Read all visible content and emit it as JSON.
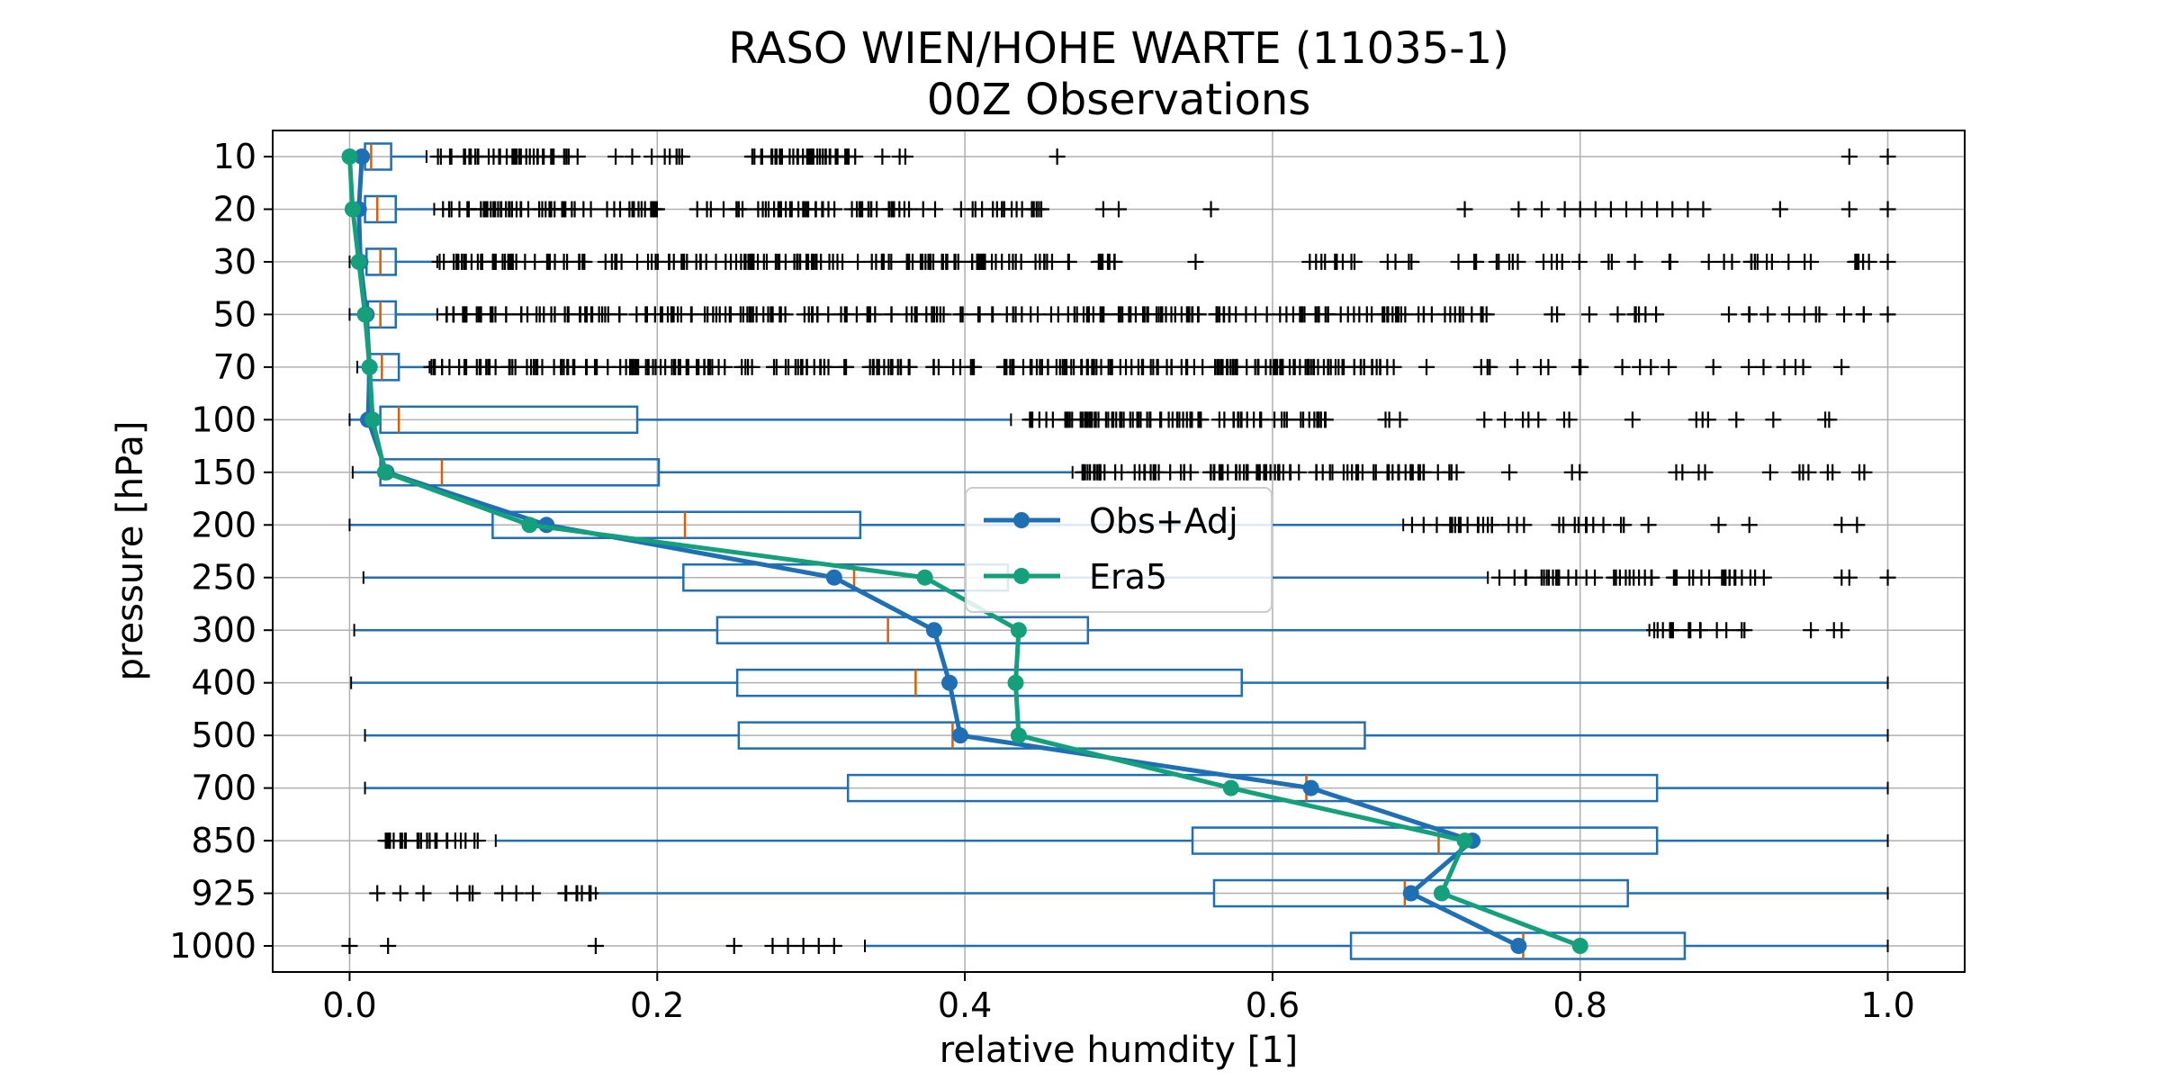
{
  "chart_data": {
    "type": "box",
    "title": "RASO WIEN/HOHE WARTE (11035-1)",
    "subtitle": "00Z Observations",
    "xlabel": "relative humdity [1]",
    "ylabel": "pressure [hPa]",
    "xlim": [
      -0.05,
      1.05
    ],
    "xticks": [
      0.0,
      0.2,
      0.4,
      0.6,
      0.8,
      1.0
    ],
    "xtick_labels": [
      "0.0",
      "0.2",
      "0.4",
      "0.6",
      "0.8",
      "1.0"
    ],
    "grid": true,
    "legend_position": "center",
    "levels": [
      "10",
      "20",
      "30",
      "50",
      "70",
      "100",
      "150",
      "200",
      "250",
      "300",
      "400",
      "500",
      "700",
      "850",
      "925",
      "1000"
    ],
    "boxes": [
      {
        "level": "10",
        "whisker_low": 0.0,
        "q1": 0.01,
        "median": 0.014,
        "q3": 0.027,
        "whisker_high": 0.05,
        "outlier_ranges": [
          [
            0.055,
            0.15,
            40
          ],
          [
            0.17,
            0.235,
            8
          ],
          [
            0.26,
            0.33,
            40
          ],
          [
            0.34,
            0.37,
            3
          ]
        ],
        "outliers": [
          0.46,
          0.975,
          1.0
        ]
      },
      {
        "level": "20",
        "whisker_low": 0.0,
        "q1": 0.01,
        "median": 0.018,
        "q3": 0.03,
        "whisker_high": 0.055,
        "outlier_ranges": [
          [
            0.057,
            0.2,
            60
          ],
          [
            0.22,
            0.45,
            70
          ]
        ],
        "outliers": [
          0.49,
          0.5,
          0.56,
          0.725,
          0.76,
          0.775,
          0.79,
          0.8,
          0.81,
          0.82,
          0.83,
          0.84,
          0.85,
          0.86,
          0.87,
          0.88,
          0.93,
          0.975,
          1.0
        ]
      },
      {
        "level": "30",
        "whisker_low": 0.0,
        "q1": 0.011,
        "median": 0.02,
        "q3": 0.03,
        "whisker_high": 0.057,
        "outlier_ranges": [
          [
            0.058,
            0.5,
            160
          ],
          [
            0.61,
            0.99,
            50
          ]
        ],
        "outliers": [
          0.55,
          1.0
        ]
      },
      {
        "level": "50",
        "whisker_low": 0.0,
        "q1": 0.012,
        "median": 0.02,
        "q3": 0.03,
        "whisker_high": 0.057,
        "outlier_ranges": [
          [
            0.058,
            0.74,
            220
          ],
          [
            0.78,
            0.99,
            20
          ]
        ],
        "outliers": [
          1.0
        ]
      },
      {
        "level": "70",
        "whisker_low": 0.005,
        "q1": 0.012,
        "median": 0.021,
        "q3": 0.032,
        "whisker_high": 0.052,
        "outlier_ranges": [
          [
            0.053,
            0.68,
            240
          ],
          [
            0.7,
            0.98,
            20
          ]
        ],
        "outliers": []
      },
      {
        "level": "100",
        "whisker_low": 0.0,
        "q1": 0.02,
        "median": 0.032,
        "q3": 0.187,
        "whisker_high": 0.43,
        "outlier_ranges": [
          [
            0.44,
            0.65,
            80
          ],
          [
            0.67,
            0.99,
            18
          ]
        ],
        "outliers": []
      },
      {
        "level": "150",
        "whisker_low": 0.002,
        "q1": 0.02,
        "median": 0.06,
        "q3": 0.201,
        "whisker_high": 0.47,
        "outlier_ranges": [
          [
            0.474,
            0.72,
            90
          ],
          [
            0.75,
            0.985,
            15
          ]
        ],
        "outliers": []
      },
      {
        "level": "200",
        "whisker_low": 0.0,
        "q1": 0.093,
        "median": 0.218,
        "q3": 0.332,
        "whisker_high": 0.685,
        "outlier_ranges": [
          [
            0.688,
            0.85,
            30
          ]
        ],
        "outliers": [
          0.89,
          0.91,
          0.97,
          0.98
        ]
      },
      {
        "level": "250",
        "whisker_low": 0.009,
        "q1": 0.217,
        "median": 0.328,
        "q3": 0.428,
        "whisker_high": 0.74,
        "outlier_ranges": [
          [
            0.742,
            0.92,
            45
          ]
        ],
        "outliers": [
          0.97,
          0.975,
          1.0
        ]
      },
      {
        "level": "300",
        "whisker_low": 0.003,
        "q1": 0.239,
        "median": 0.35,
        "q3": 0.48,
        "whisker_high": 0.845,
        "outlier_ranges": [
          [
            0.847,
            0.91,
            14
          ]
        ],
        "outliers": [
          0.95,
          0.965,
          0.97
        ]
      },
      {
        "level": "400",
        "whisker_low": 0.001,
        "q1": 0.252,
        "median": 0.368,
        "q3": 0.58,
        "whisker_high": 1.0,
        "outlier_ranges": [],
        "outliers": []
      },
      {
        "level": "500",
        "whisker_low": 0.01,
        "q1": 0.253,
        "median": 0.392,
        "q3": 0.66,
        "whisker_high": 1.0,
        "outlier_ranges": [],
        "outliers": []
      },
      {
        "level": "700",
        "whisker_low": 0.01,
        "q1": 0.324,
        "median": 0.622,
        "q3": 0.85,
        "whisker_high": 1.0,
        "outlier_ranges": [],
        "outliers": []
      },
      {
        "level": "850",
        "whisker_low": 0.095,
        "q1": 0.548,
        "median": 0.708,
        "q3": 0.85,
        "whisker_high": 1.0,
        "outlier_ranges": [
          [
            0.018,
            0.094,
            24
          ]
        ],
        "outliers": []
      },
      {
        "level": "925",
        "whisker_low": 0.16,
        "q1": 0.562,
        "median": 0.686,
        "q3": 0.831,
        "whisker_high": 1.0,
        "outlier_ranges": [
          [
            0.095,
            0.158,
            10
          ]
        ],
        "outliers": [
          0.018,
          0.033,
          0.048,
          0.07,
          0.078,
          0.08
        ]
      },
      {
        "level": "1000",
        "whisker_low": 0.335,
        "q1": 0.651,
        "median": 0.763,
        "q3": 0.868,
        "whisker_high": 1.0,
        "outlier_ranges": [],
        "outliers": [
          0.0,
          0.025,
          0.16,
          0.25,
          0.275,
          0.285,
          0.295,
          0.305,
          0.315
        ]
      }
    ],
    "series": [
      {
        "name": "Obs+Adj",
        "color": "#1f6fb4",
        "values": [
          0.008,
          0.006,
          0.007,
          0.011,
          0.013,
          0.012,
          0.024,
          0.128,
          0.315,
          0.38,
          0.39,
          0.397,
          0.625,
          0.73,
          0.69,
          0.76
        ]
      },
      {
        "name": "Era5",
        "color": "#13a07a",
        "values": [
          0.0,
          0.002,
          0.006,
          0.01,
          0.013,
          0.015,
          0.023,
          0.117,
          0.374,
          0.435,
          0.433,
          0.435,
          0.573,
          0.725,
          0.71,
          0.8
        ]
      }
    ],
    "colors": {
      "box": "#1f6fb4",
      "median": "#d95f02",
      "outlier": "#000000",
      "grid": "#b0b0b0"
    }
  }
}
